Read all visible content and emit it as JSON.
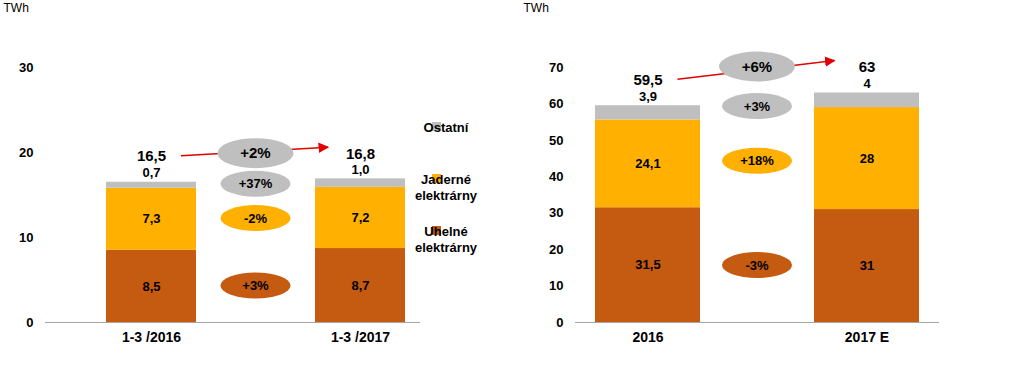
{
  "chart_data": [
    {
      "type": "bar",
      "stacked": true,
      "data_labels": true,
      "legend": "right",
      "grid": false,
      "ylabel": "TWh",
      "categories": [
        "1-3 /2016",
        "1-3 /2017"
      ],
      "ylim": [
        0,
        30
      ],
      "yticks": [
        0,
        10,
        20,
        30
      ],
      "totals": [
        16.5,
        16.8
      ],
      "total_labels": [
        "16,5",
        "16,8"
      ],
      "total_change": "+2%",
      "series": [
        {
          "name": "Uhelné elektrárny",
          "color": "#c55a11",
          "values": [
            8.5,
            8.7
          ],
          "value_labels": [
            "8,5",
            "8,7"
          ],
          "change": "+3%"
        },
        {
          "name": "Jaderné elektrárny",
          "color": "#ffb000",
          "values": [
            7.3,
            7.2
          ],
          "value_labels": [
            "7,3",
            "7,2"
          ],
          "change": "-2%"
        },
        {
          "name": "Ostatní",
          "color": "#bfbfbf",
          "values": [
            0.7,
            1.0
          ],
          "value_labels": [
            "0,7",
            "1,0"
          ],
          "change": "+37%"
        }
      ]
    },
    {
      "type": "bar",
      "stacked": true,
      "data_labels": true,
      "grid": false,
      "ylabel": "TWh",
      "categories": [
        "2016",
        "2017 E"
      ],
      "ylim": [
        0,
        70
      ],
      "yticks": [
        0,
        10,
        20,
        30,
        40,
        50,
        60,
        70
      ],
      "totals": [
        59.5,
        63
      ],
      "total_labels": [
        "59,5",
        "63"
      ],
      "total_change": "+6%",
      "series": [
        {
          "name": "Uhelné elektrárny",
          "color": "#c55a11",
          "values": [
            31.5,
            31
          ],
          "value_labels": [
            "31,5",
            "31"
          ],
          "change": "-3%"
        },
        {
          "name": "Jaderné elektrárny",
          "color": "#ffb000",
          "values": [
            24.1,
            28
          ],
          "value_labels": [
            "24,1",
            "28"
          ],
          "change": "+18%"
        },
        {
          "name": "Ostatní",
          "color": "#bfbfbf",
          "values": [
            3.9,
            4
          ],
          "value_labels": [
            "3,9",
            "4"
          ],
          "change": "+3%"
        }
      ]
    }
  ]
}
